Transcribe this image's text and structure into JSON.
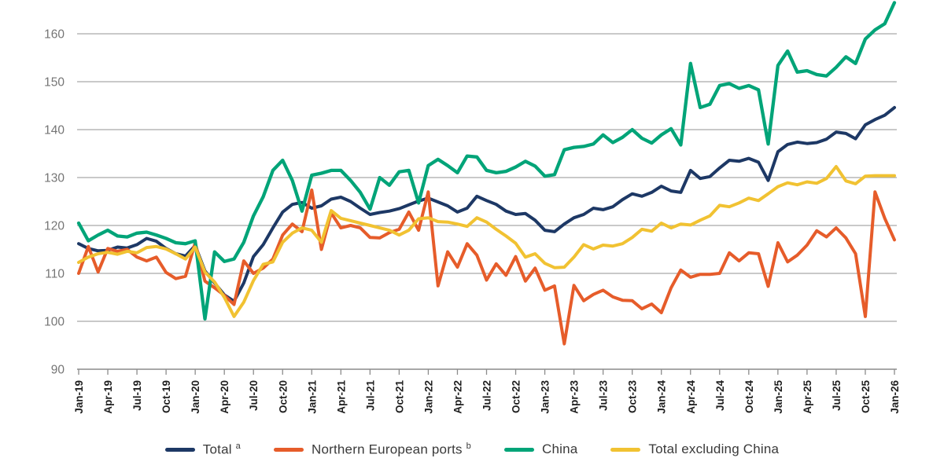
{
  "styles": {
    "background": "#ffffff",
    "grid_color": "#a9a9a9",
    "axis_color": "#8c8c8c",
    "y_label_color": "#757575",
    "x_label_color": "#1f1f1f",
    "legend_text_color": "#3a3a3a"
  },
  "chart_data": {
    "type": "line",
    "title": "",
    "xlabel": "",
    "ylabel": "",
    "ylim": [
      90,
      170
    ],
    "y_ticks_shown": [
      90,
      100,
      110,
      120,
      130,
      140,
      150,
      160
    ],
    "grid": true,
    "legend_position": "bottom",
    "x_tick_every": 3,
    "months": [
      "Jan-19",
      "Feb-19",
      "Mar-19",
      "Apr-19",
      "May-19",
      "Jun-19",
      "Jul-19",
      "Aug-19",
      "Sep-19",
      "Oct-19",
      "Nov-19",
      "Dec-19",
      "Jan-20",
      "Feb-20",
      "Mar-20",
      "Apr-20",
      "May-20",
      "Jun-20",
      "Jul-20",
      "Aug-20",
      "Sep-20",
      "Oct-20",
      "Nov-20",
      "Dec-20",
      "Jan-21",
      "Feb-21",
      "Mar-21",
      "Apr-21",
      "May-21",
      "Jun-21",
      "Jul-21",
      "Aug-21",
      "Sep-21",
      "Oct-21",
      "Nov-21",
      "Dec-21",
      "Jan-22",
      "Feb-22",
      "Mar-22",
      "Apr-22",
      "May-22",
      "Jun-22",
      "Jul-22",
      "Aug-22",
      "Sep-22",
      "Oct-22",
      "Nov-22",
      "Dec-22",
      "Jan-23",
      "Feb-23",
      "Mar-23",
      "Apr-23",
      "May-23",
      "Jun-23",
      "Jul-23",
      "Aug-23",
      "Sep-23",
      "Oct-23",
      "Nov-23",
      "Dec-23",
      "Jan-24",
      "Feb-24",
      "Mar-24",
      "Apr-24",
      "May-24",
      "Jun-24",
      "Jul-24",
      "Aug-24",
      "Sep-24",
      "Oct-24",
      "Nov-24",
      "Dec-24",
      "Jan-25",
      "Feb-25",
      "Mar-25",
      "Apr-25",
      "May-25",
      "Jun-25",
      "Jul-25",
      "Aug-25",
      "Sep-25",
      "Oct-25",
      "Nov-25",
      "Dec-25",
      "Jan-26"
    ],
    "series": [
      {
        "name": "Total",
        "sup": "a",
        "color": "#1d3865",
        "stroke_width": 4,
        "values": [
          116.2,
          115.2,
          114.7,
          114.8,
          115.5,
          115.3,
          116.0,
          117.3,
          116.7,
          115.2,
          114.1,
          113.6,
          115.8,
          110.5,
          108.0,
          105.5,
          104.2,
          108.0,
          113.5,
          116.0,
          119.5,
          122.8,
          124.4,
          124.8,
          123.6,
          124.1,
          125.5,
          125.9,
          125.0,
          123.6,
          122.3,
          122.7,
          123.0,
          123.5,
          124.3,
          125.1,
          125.7,
          124.9,
          124.1,
          122.8,
          123.6,
          126.1,
          125.2,
          124.4,
          123.0,
          122.3,
          122.5,
          121.1,
          119.0,
          118.7,
          120.3,
          121.6,
          122.3,
          123.6,
          123.3,
          123.9,
          125.4,
          126.6,
          126.1,
          126.9,
          128.2,
          127.2,
          126.9,
          131.5,
          129.8,
          130.2,
          132.0,
          133.6,
          133.4,
          134.0,
          133.2,
          129.4,
          135.4,
          136.9,
          137.4,
          137.1,
          137.3,
          138.0,
          139.5,
          139.2,
          138.1,
          141.0,
          142.1,
          143.0,
          144.6
        ]
      },
      {
        "name": "Northern European ports",
        "sup": "b",
        "color": "#e65c2a",
        "stroke_width": 4,
        "values": [
          110.0,
          115.6,
          110.3,
          115.2,
          114.6,
          115.0,
          113.4,
          112.6,
          113.4,
          110.2,
          108.9,
          109.4,
          116.4,
          108.4,
          107.0,
          105.4,
          103.5,
          112.6,
          110.0,
          111.1,
          113.0,
          118.0,
          120.3,
          118.7,
          127.4,
          115.0,
          122.6,
          119.5,
          120.0,
          119.5,
          117.5,
          117.4,
          118.5,
          119.2,
          122.8,
          119.0,
          127.0,
          107.4,
          114.5,
          111.3,
          116.2,
          113.8,
          108.6,
          112.0,
          109.6,
          113.5,
          108.4,
          111.1,
          106.5,
          107.4,
          95.3,
          107.5,
          104.3,
          105.6,
          106.5,
          105.1,
          104.4,
          104.3,
          102.6,
          103.6,
          101.8,
          107.0,
          110.7,
          109.2,
          109.8,
          109.8,
          110.0,
          114.3,
          112.6,
          114.3,
          114.1,
          107.3,
          116.4,
          112.4,
          113.8,
          115.9,
          118.9,
          117.6,
          119.5,
          117.4,
          114.1,
          101.0,
          127.0,
          121.5,
          117.0
        ]
      },
      {
        "name": "China",
        "sup": "",
        "color": "#00a478",
        "stroke_width": 4.3,
        "values": [
          120.5,
          116.8,
          118.0,
          119.0,
          117.8,
          117.6,
          118.4,
          118.6,
          118.0,
          117.3,
          116.4,
          116.2,
          116.8,
          100.5,
          114.5,
          112.5,
          113.0,
          116.5,
          122.0,
          126.0,
          131.5,
          133.6,
          129.4,
          123.0,
          130.5,
          130.9,
          131.5,
          131.5,
          129.4,
          126.9,
          123.4,
          130.0,
          128.4,
          131.2,
          131.5,
          124.7,
          132.5,
          133.8,
          132.5,
          131.0,
          134.5,
          134.3,
          131.5,
          131.0,
          131.3,
          132.2,
          133.4,
          132.4,
          130.3,
          130.6,
          135.8,
          136.3,
          136.5,
          137.0,
          138.9,
          137.3,
          138.4,
          140.0,
          138.2,
          137.2,
          138.9,
          140.2,
          136.8,
          153.8,
          144.6,
          145.3,
          149.2,
          149.6,
          148.6,
          149.2,
          148.3,
          137.0,
          153.4,
          156.4,
          152.0,
          152.3,
          151.5,
          151.2,
          153.0,
          155.2,
          153.8,
          158.9,
          160.8,
          162.1,
          166.5
        ]
      },
      {
        "name": "Total excluding China",
        "sup": "",
        "color": "#f1c232",
        "stroke_width": 4,
        "values": [
          112.3,
          113.4,
          114.1,
          114.4,
          114.0,
          114.6,
          114.3,
          115.4,
          115.6,
          115.1,
          114.1,
          113.0,
          115.5,
          110.3,
          108.2,
          105.0,
          101.0,
          104.0,
          108.5,
          111.9,
          112.4,
          116.5,
          118.4,
          119.5,
          119.0,
          116.5,
          123.1,
          121.5,
          121.0,
          120.5,
          120.0,
          119.5,
          119.0,
          118.0,
          119.0,
          121.4,
          121.6,
          120.8,
          120.7,
          120.3,
          119.8,
          121.6,
          120.7,
          119.2,
          117.8,
          116.3,
          113.4,
          114.1,
          112.1,
          111.2,
          111.3,
          113.4,
          116.0,
          115.1,
          115.9,
          115.7,
          116.2,
          117.5,
          119.2,
          118.8,
          120.5,
          119.5,
          120.3,
          120.1,
          121.1,
          122.0,
          124.2,
          123.9,
          124.7,
          125.7,
          125.2,
          126.6,
          128.1,
          128.9,
          128.5,
          129.1,
          128.8,
          129.8,
          132.3,
          129.3,
          128.7,
          130.3,
          130.4,
          130.4,
          130.4
        ]
      }
    ]
  }
}
